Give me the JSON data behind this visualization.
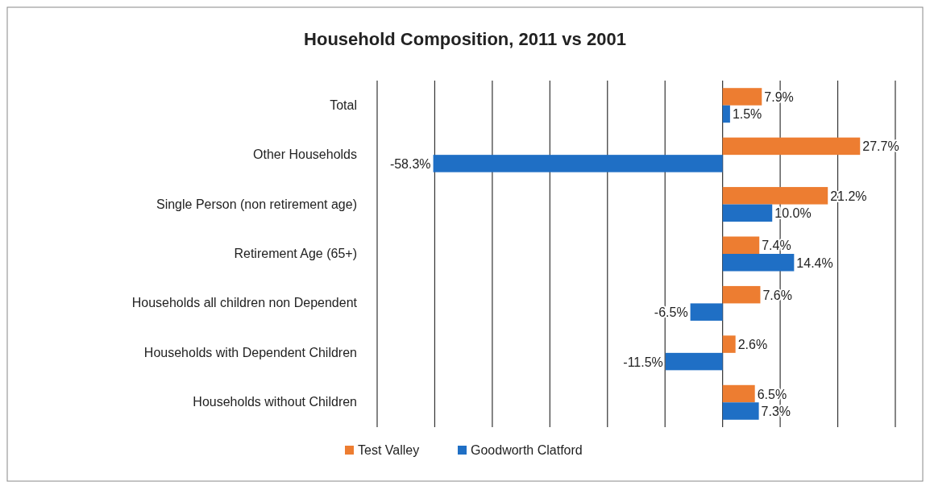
{
  "chart_data": {
    "type": "bar",
    "orientation": "horizontal",
    "title": "Household Composition, 2011 vs 2001",
    "categories": [
      "Total",
      "Other Households",
      "Single Person (non retirement age)",
      "Retirement Age (65+)",
      "Households all children non Dependent",
      "Households with Dependent Children",
      "Households without Children"
    ],
    "series": [
      {
        "name": "Test Valley",
        "color": "#ed7d31",
        "values": [
          7.9,
          27.7,
          21.2,
          7.4,
          7.6,
          2.6,
          6.5
        ],
        "value_labels": [
          "7.9%",
          "27.7%",
          "21.2%",
          "7.4%",
          "7.6%",
          "2.6%",
          "6.5%"
        ]
      },
      {
        "name": "Goodworth Clatford",
        "color": "#1f6fc5",
        "values": [
          1.5,
          -58.3,
          10.0,
          14.4,
          -6.5,
          -11.5,
          7.3
        ],
        "value_labels": [
          "1.5%",
          "-58.3%",
          "10.0%",
          "14.4%",
          "-6.5%",
          "-11.5%",
          "7.3%"
        ]
      }
    ],
    "xlim": [
      -69.6,
      40
    ],
    "xticks": [
      {
        "value": -69.6,
        "label": null
      },
      {
        "value": -58,
        "label": null
      },
      {
        "value": -46.4,
        "label": null
      },
      {
        "value": -34.8,
        "label": null
      },
      {
        "value": -23.2,
        "label": null
      },
      {
        "value": -11.6,
        "label": null
      },
      {
        "value": 0,
        "label": null
      },
      {
        "value": 11.6,
        "label": null
      },
      {
        "value": 23.2,
        "label": null
      },
      {
        "value": 34.8,
        "label": null
      }
    ],
    "grid": "x",
    "legend": "bottom",
    "tick_labels": "y"
  }
}
